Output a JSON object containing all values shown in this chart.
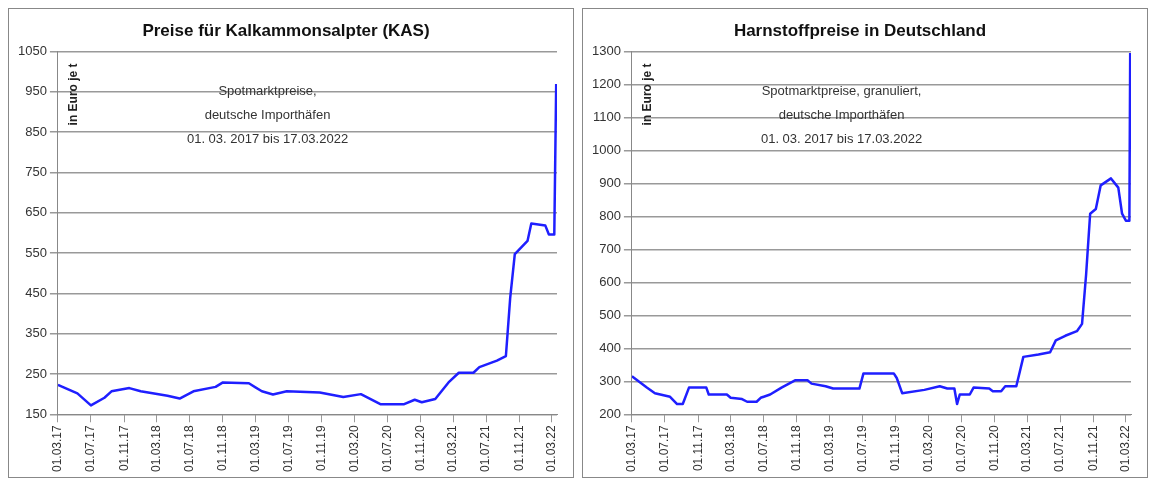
{
  "chart_data": [
    {
      "type": "line",
      "title": "Preise für Kalkammonsalpter (KAS)",
      "ylabel": "in Euro je t",
      "annotations": [
        "Spotmarktpreise,",
        "deutsche Importhäfen",
        "01. 03. 2017 bis 17.03.2022"
      ],
      "grid": "y",
      "marker": "none",
      "xlim": [
        "2017-03-01",
        "2022-03-20"
      ],
      "xticks": [
        {
          "value": "2017-03-01",
          "label": "01.03.17"
        },
        {
          "value": "2017-07-01",
          "label": "01.07.17"
        },
        {
          "value": "2017-11-01",
          "label": "01.11.17"
        },
        {
          "value": "2018-03-01",
          "label": "01.03.18"
        },
        {
          "value": "2018-07-01",
          "label": "01.07.18"
        },
        {
          "value": "2018-11-01",
          "label": "01.11.18"
        },
        {
          "value": "2019-03-01",
          "label": "01.03.19"
        },
        {
          "value": "2019-07-01",
          "label": "01.07.19"
        },
        {
          "value": "2019-11-01",
          "label": "01.11.19"
        },
        {
          "value": "2020-03-01",
          "label": "01.03.20"
        },
        {
          "value": "2020-07-01",
          "label": "01.07.20"
        },
        {
          "value": "2020-11-01",
          "label": "01.11.20"
        },
        {
          "value": "2021-03-01",
          "label": "01.03.21"
        },
        {
          "value": "2021-07-01",
          "label": "01.07.21"
        },
        {
          "value": "2021-11-01",
          "label": "01.11.21"
        },
        {
          "value": "2022-03-01",
          "label": "01.03.22"
        }
      ],
      "ylim": [
        150,
        1050
      ],
      "yticks": [
        150,
        250,
        350,
        450,
        550,
        650,
        750,
        850,
        950,
        1050
      ],
      "series": [
        {
          "color": "#1f1fff",
          "x": [
            "2017-03-01",
            "2017-05-12",
            "2017-07-01",
            "2017-08-20",
            "2017-09-15",
            "2017-11-20",
            "2018-01-01",
            "2018-04-10",
            "2018-05-25",
            "2018-07-15",
            "2018-10-05",
            "2018-11-01",
            "2019-02-05",
            "2019-03-25",
            "2019-05-05",
            "2019-06-25",
            "2019-10-25",
            "2020-01-20",
            "2020-03-25",
            "2020-06-05",
            "2020-09-01",
            "2020-10-10",
            "2020-11-05",
            "2020-12-25",
            "2021-02-12",
            "2021-03-22",
            "2021-05-15",
            "2021-06-06",
            "2021-08-10",
            "2021-09-12",
            "2021-09-28",
            "2021-10-15",
            "2021-11-15",
            "2021-12-01",
            "2021-12-15",
            "2022-02-05",
            "2022-02-18",
            "2022-03-10",
            "2022-03-17"
          ],
          "values": [
            223,
            202,
            172,
            191,
            207,
            215,
            207,
            196,
            189,
            207,
            218,
            229,
            227,
            207,
            199,
            207,
            204,
            193,
            200,
            175,
            175,
            186,
            180,
            188,
            229,
            253,
            253,
            267,
            283,
            294,
            439,
            547,
            569,
            580,
            623,
            618,
            596,
            596,
            969
          ]
        }
      ]
    },
    {
      "type": "line",
      "title": "Harnstoffpreise in Deutschland",
      "ylabel": "in Euro je t",
      "annotations": [
        "Spotmarktpreise, granuliert,",
        "deutsche Importhäfen",
        "01. 03. 2017 bis 17.03.2022"
      ],
      "grid": "y",
      "marker": "none",
      "xlim": [
        "2017-03-01",
        "2022-03-20"
      ],
      "xticks": [
        {
          "value": "2017-03-01",
          "label": "01.03.17"
        },
        {
          "value": "2017-07-01",
          "label": "01.07.17"
        },
        {
          "value": "2017-11-01",
          "label": "01.11.17"
        },
        {
          "value": "2018-03-01",
          "label": "01.03.18"
        },
        {
          "value": "2018-07-01",
          "label": "01.07.18"
        },
        {
          "value": "2018-11-01",
          "label": "01.11.18"
        },
        {
          "value": "2019-03-01",
          "label": "01.03.19"
        },
        {
          "value": "2019-07-01",
          "label": "01.07.19"
        },
        {
          "value": "2019-11-01",
          "label": "01.11.19"
        },
        {
          "value": "2020-03-01",
          "label": "01.03.20"
        },
        {
          "value": "2020-07-01",
          "label": "01.07.20"
        },
        {
          "value": "2020-11-01",
          "label": "01.11.20"
        },
        {
          "value": "2021-03-01",
          "label": "01.03.21"
        },
        {
          "value": "2021-07-01",
          "label": "01.07.21"
        },
        {
          "value": "2021-11-01",
          "label": "01.11.21"
        },
        {
          "value": "2022-03-01",
          "label": "01.03.22"
        }
      ],
      "ylim": [
        200,
        1300
      ],
      "yticks": [
        200,
        300,
        400,
        500,
        600,
        700,
        800,
        900,
        1000,
        1100,
        1200,
        1300
      ],
      "series": [
        {
          "color": "#1f1fff",
          "x": [
            "2017-03-01",
            "2017-04-25",
            "2017-05-25",
            "2017-07-20",
            "2017-08-15",
            "2017-09-05",
            "2017-09-28",
            "2017-12-01",
            "2017-12-10",
            "2018-02-15",
            "2018-03-01",
            "2018-04-12",
            "2018-05-01",
            "2018-06-05",
            "2018-06-20",
            "2018-07-25",
            "2018-09-05",
            "2018-10-25",
            "2018-12-10",
            "2018-12-25",
            "2019-02-15",
            "2019-03-15",
            "2019-06-20",
            "2019-07-05",
            "2019-10-25",
            "2019-11-05",
            "2019-11-25",
            "2020-02-15",
            "2020-04-12",
            "2020-05-10",
            "2020-06-05",
            "2020-06-15",
            "2020-06-25",
            "2020-08-01",
            "2020-08-15",
            "2020-10-12",
            "2020-10-25",
            "2020-11-25",
            "2020-12-10",
            "2021-01-20",
            "2021-02-15",
            "2021-04-12",
            "2021-05-25",
            "2021-06-15",
            "2021-07-20",
            "2021-09-01",
            "2021-09-20",
            "2021-10-05",
            "2021-10-20",
            "2021-11-10",
            "2021-11-28",
            "2022-01-05",
            "2022-02-01",
            "2022-02-15",
            "2022-03-01",
            "2022-03-14",
            "2022-03-17"
          ],
          "values": [
            315,
            281,
            264,
            253,
            231,
            231,
            281,
            281,
            260,
            260,
            250,
            246,
            238,
            238,
            250,
            260,
            281,
            303,
            303,
            293,
            285,
            278,
            278,
            324,
            324,
            310,
            264,
            274,
            285,
            278,
            278,
            231,
            260,
            260,
            281,
            278,
            270,
            270,
            285,
            285,
            374,
            381,
            388,
            424,
            438,
            452,
            474,
            623,
            808,
            822,
            894,
            915,
            887,
            808,
            787,
            787,
            1295
          ]
        }
      ]
    }
  ]
}
